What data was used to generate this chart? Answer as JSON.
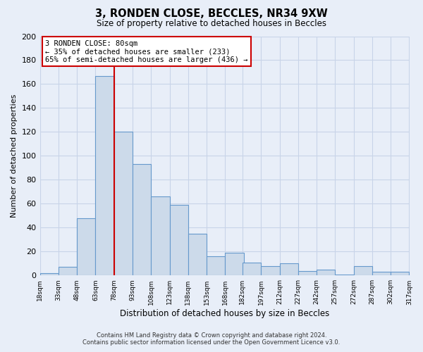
{
  "title": "3, RONDEN CLOSE, BECCLES, NR34 9XW",
  "subtitle": "Size of property relative to detached houses in Beccles",
  "xlabel": "Distribution of detached houses by size in Beccles",
  "ylabel": "Number of detached properties",
  "bar_color": "#ccdaea",
  "bar_edge_color": "#6699cc",
  "vline_x": 78,
  "vline_color": "#cc0000",
  "annotation_title": "3 RONDEN CLOSE: 80sqm",
  "annotation_line1": "← 35% of detached houses are smaller (233)",
  "annotation_line2": "65% of semi-detached houses are larger (436) →",
  "bin_edges": [
    18,
    33,
    48,
    63,
    78,
    93,
    108,
    123,
    138,
    153,
    168,
    182,
    197,
    212,
    227,
    242,
    257,
    272,
    287,
    302,
    317
  ],
  "bin_heights": [
    2,
    7,
    48,
    167,
    120,
    93,
    66,
    59,
    35,
    16,
    19,
    11,
    8,
    10,
    4,
    5,
    1,
    8,
    3,
    3
  ],
  "xlim": [
    18,
    317
  ],
  "ylim": [
    0,
    200
  ],
  "yticks": [
    0,
    20,
    40,
    60,
    80,
    100,
    120,
    140,
    160,
    180,
    200
  ],
  "x_tick_labels": [
    "18sqm",
    "33sqm",
    "48sqm",
    "63sqm",
    "78sqm",
    "93sqm",
    "108sqm",
    "123sqm",
    "138sqm",
    "153sqm",
    "168sqm",
    "182sqm",
    "197sqm",
    "212sqm",
    "227sqm",
    "242sqm",
    "257sqm",
    "272sqm",
    "287sqm",
    "302sqm",
    "317sqm"
  ],
  "footer_line1": "Contains HM Land Registry data © Crown copyright and database right 2024.",
  "footer_line2": "Contains public sector information licensed under the Open Government Licence v3.0.",
  "background_color": "#e8eef8",
  "grid_color": "#c8d4e8"
}
